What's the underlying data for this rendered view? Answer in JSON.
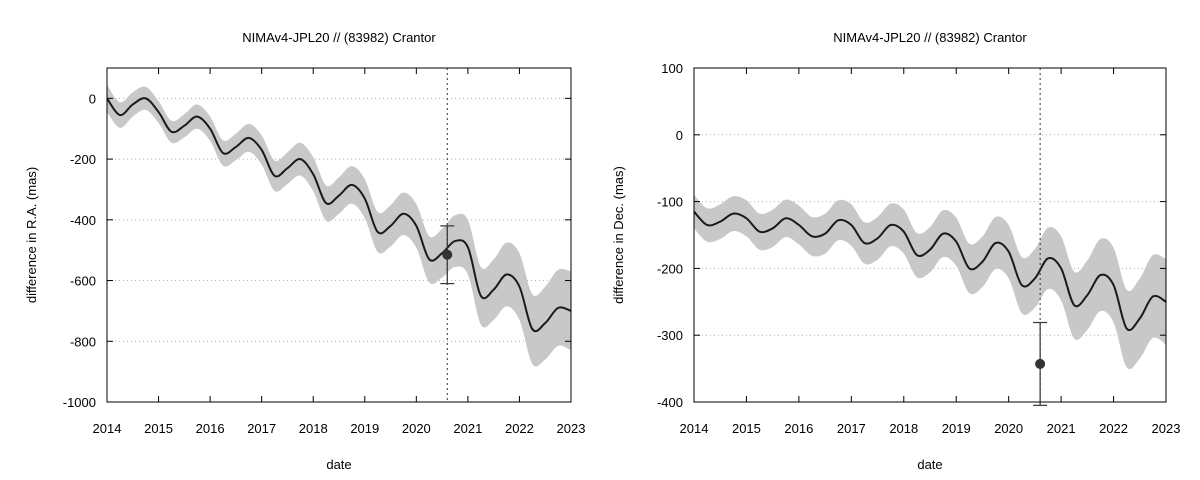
{
  "chart_data": [
    {
      "type": "line",
      "title": "NIMAv4-JPL20 // (83982) Crantor",
      "xlabel": "date",
      "ylabel": "difference in R.A. (mas)",
      "xlim": [
        2014,
        2023
      ],
      "ylim": [
        -1000,
        100
      ],
      "xticks": [
        "2014",
        "2015",
        "2016",
        "2017",
        "2018",
        "2019",
        "2020",
        "2021",
        "2022",
        "2023"
      ],
      "yticks": [
        "0",
        "-200",
        "-400",
        "-600",
        "-800",
        "-1000"
      ],
      "ytick_values": [
        0,
        -200,
        -400,
        -600,
        -800,
        -1000
      ],
      "grid": "horizontal dotted",
      "series": [
        {
          "x": [
            2014.0,
            2014.25,
            2014.5,
            2014.75,
            2015.0,
            2015.25,
            2015.5,
            2015.75,
            2016.0,
            2016.25,
            2016.5,
            2016.75,
            2017.0,
            2017.25,
            2017.5,
            2017.75,
            2018.0,
            2018.25,
            2018.5,
            2018.75,
            2019.0,
            2019.25,
            2019.5,
            2019.75,
            2020.0,
            2020.25,
            2020.5,
            2020.75,
            2021.0,
            2021.25,
            2021.5,
            2021.75,
            2022.0,
            2022.25,
            2022.5,
            2022.75,
            2023.0
          ],
          "y": [
            0,
            -55,
            -20,
            0,
            -45,
            -110,
            -90,
            -60,
            -100,
            -180,
            -160,
            -130,
            -170,
            -255,
            -230,
            -200,
            -250,
            -345,
            -320,
            -285,
            -330,
            -440,
            -420,
            -380,
            -420,
            -530,
            -510,
            -470,
            -490,
            -650,
            -630,
            -580,
            -620,
            -760,
            -740,
            -690,
            -700
          ],
          "band": [
            45,
            42,
            40,
            38,
            36,
            36,
            38,
            40,
            40,
            42,
            44,
            46,
            48,
            50,
            52,
            54,
            56,
            58,
            60,
            62,
            64,
            66,
            68,
            70,
            72,
            76,
            80,
            85,
            90,
            95,
            100,
            105,
            110,
            115,
            120,
            125,
            130
          ]
        }
      ],
      "observation": {
        "x": 2020.6,
        "y": -515,
        "err": 95
      },
      "marker_x": 2020.6
    },
    {
      "type": "line",
      "title": "NIMAv4-JPL20 // (83982) Crantor",
      "xlabel": "date",
      "ylabel": "difference in Dec. (mas)",
      "xlim": [
        2014,
        2023
      ],
      "ylim": [
        -400,
        100
      ],
      "xticks": [
        "2014",
        "2015",
        "2016",
        "2017",
        "2018",
        "2019",
        "2020",
        "2021",
        "2022",
        "2023"
      ],
      "yticks": [
        "100",
        "0",
        "-100",
        "-200",
        "-300",
        "-400"
      ],
      "ytick_values": [
        100,
        0,
        -100,
        -200,
        -300,
        -400
      ],
      "grid": "horizontal dotted",
      "series": [
        {
          "x": [
            2014.0,
            2014.25,
            2014.5,
            2014.75,
            2015.0,
            2015.25,
            2015.5,
            2015.75,
            2016.0,
            2016.25,
            2016.5,
            2016.75,
            2017.0,
            2017.25,
            2017.5,
            2017.75,
            2018.0,
            2018.25,
            2018.5,
            2018.75,
            2019.0,
            2019.25,
            2019.5,
            2019.75,
            2020.0,
            2020.25,
            2020.5,
            2020.75,
            2021.0,
            2021.25,
            2021.5,
            2021.75,
            2022.0,
            2022.25,
            2022.5,
            2022.75,
            2023.0
          ],
          "y": [
            -115,
            -135,
            -130,
            -118,
            -125,
            -145,
            -140,
            -125,
            -135,
            -152,
            -148,
            -128,
            -135,
            -162,
            -155,
            -135,
            -145,
            -180,
            -172,
            -148,
            -160,
            -200,
            -190,
            -162,
            -175,
            -225,
            -215,
            -185,
            -200,
            -255,
            -240,
            -210,
            -225,
            -290,
            -275,
            -242,
            -250
          ],
          "band": [
            25,
            25,
            26,
            26,
            27,
            27,
            28,
            28,
            29,
            29,
            30,
            30,
            31,
            31,
            32,
            32,
            33,
            33,
            34,
            35,
            36,
            37,
            38,
            39,
            40,
            42,
            44,
            46,
            48,
            50,
            52,
            54,
            56,
            58,
            60,
            62,
            64
          ]
        }
      ],
      "observation": {
        "x": 2020.6,
        "y": -343,
        "err": 62
      },
      "marker_x": 2020.6
    }
  ]
}
